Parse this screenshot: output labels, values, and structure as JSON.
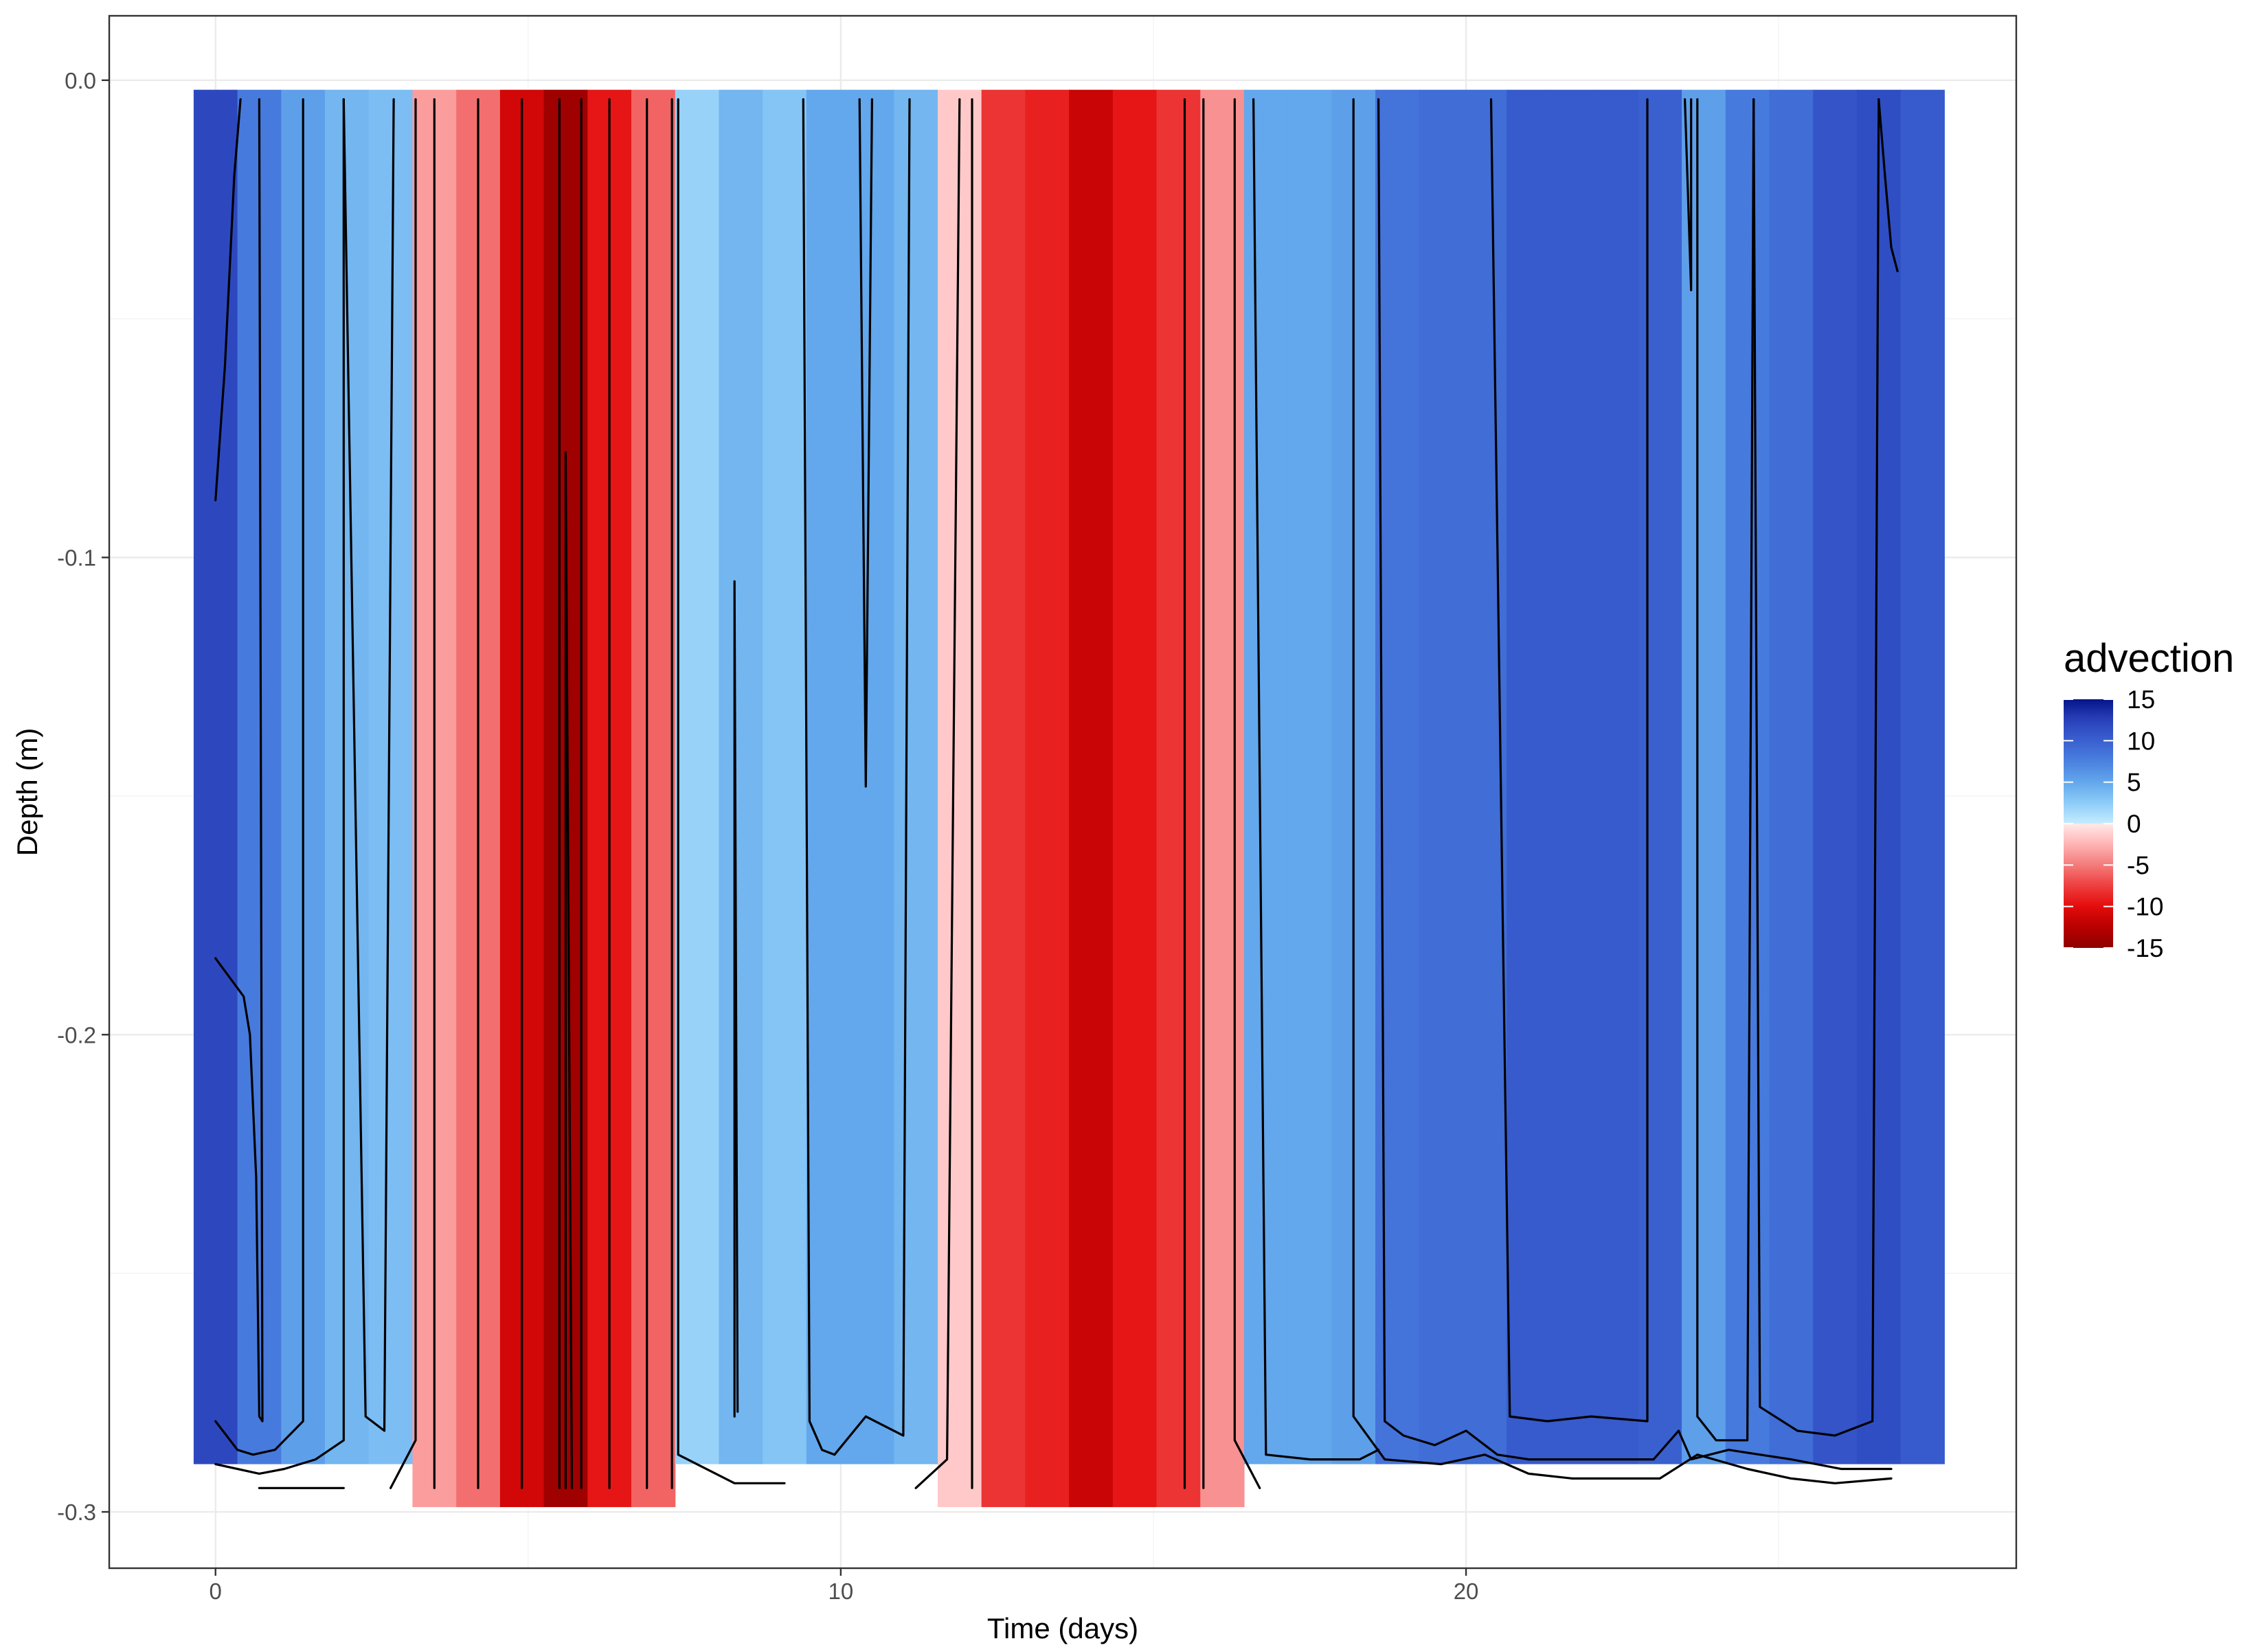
{
  "chart_data": {
    "type": "heatmap",
    "xlabel": "Time (days)",
    "ylabel": "Depth (m)",
    "xlim": [
      -1.7,
      28.8
    ],
    "ylim": [
      -0.3118,
      0.0135
    ],
    "x_ticks": [
      0,
      10,
      20
    ],
    "y_ticks": [
      0.0,
      -0.1,
      -0.2,
      -0.3
    ],
    "x_tick_labels": [
      "0",
      "10",
      "20"
    ],
    "y_tick_labels": [
      "0.0",
      "-0.1",
      "-0.2",
      "-0.3"
    ],
    "grid": true,
    "legend": {
      "title": "advection",
      "position": "right",
      "colorbar_labels": [
        "15",
        "10",
        "5",
        "0",
        "-5",
        "-10",
        "-15"
      ],
      "colorbar_values": [
        15,
        10,
        5,
        0,
        -5,
        -10,
        -15
      ],
      "colors_positive": [
        "#c6ebff",
        "#8cccf7",
        "#63a7ec",
        "#4a80e0",
        "#3a60d0",
        "#2a42bb",
        "#05148a"
      ],
      "colors_negative": [
        "#ffeaea",
        "#ffb3b3",
        "#f47b7b",
        "#ee3e3e",
        "#e40c0c",
        "#b80000",
        "#8e0000"
      ]
    },
    "depth_range": [
      -0.29,
      -0.002
    ],
    "depth_range_negative": [
      -0.299,
      -0.002
    ],
    "columns": [
      {
        "x": 0.0,
        "value": 12.0
      },
      {
        "x": 0.7,
        "value": 8.0
      },
      {
        "x": 1.4,
        "value": 5.5
      },
      {
        "x": 2.1,
        "value": 4.0
      },
      {
        "x": 2.8,
        "value": 3.5
      },
      {
        "x": 3.5,
        "value": -3.5
      },
      {
        "x": 4.2,
        "value": -5.5
      },
      {
        "x": 4.9,
        "value": -11.0
      },
      {
        "x": 5.6,
        "value": -14.0
      },
      {
        "x": 6.3,
        "value": -9.5
      },
      {
        "x": 7.0,
        "value": -6.0
      },
      {
        "x": 7.7,
        "value": 2.0
      },
      {
        "x": 8.4,
        "value": 4.0
      },
      {
        "x": 9.1,
        "value": 3.0
      },
      {
        "x": 9.8,
        "value": 5.0
      },
      {
        "x": 10.5,
        "value": 5.0
      },
      {
        "x": 11.2,
        "value": 4.0
      },
      {
        "x": 11.9,
        "value": -1.5
      },
      {
        "x": 12.6,
        "value": -8.0
      },
      {
        "x": 13.3,
        "value": -9.0
      },
      {
        "x": 14.0,
        "value": -11.5
      },
      {
        "x": 14.7,
        "value": -9.5
      },
      {
        "x": 15.4,
        "value": -8.0
      },
      {
        "x": 16.1,
        "value": -4.0
      },
      {
        "x": 16.8,
        "value": 5.0
      },
      {
        "x": 17.5,
        "value": 5.0
      },
      {
        "x": 18.2,
        "value": 5.5
      },
      {
        "x": 18.9,
        "value": 8.5
      },
      {
        "x": 19.6,
        "value": 9.0
      },
      {
        "x": 20.3,
        "value": 9.0
      },
      {
        "x": 21.0,
        "value": 10.5
      },
      {
        "x": 21.7,
        "value": 10.5
      },
      {
        "x": 22.4,
        "value": 10.5
      },
      {
        "x": 23.1,
        "value": 10.0
      },
      {
        "x": 23.8,
        "value": 5.5
      },
      {
        "x": 24.5,
        "value": 8.0
      },
      {
        "x": 25.2,
        "value": 9.0
      },
      {
        "x": 25.9,
        "value": 11.0
      },
      {
        "x": 26.6,
        "value": 11.5
      },
      {
        "x": 27.3,
        "value": 10.5
      }
    ],
    "contours": [
      [
        [
          0.0,
          -0.088
        ],
        [
          0.15,
          -0.06
        ],
        [
          0.3,
          -0.02
        ],
        [
          0.4,
          -0.004
        ]
      ],
      [
        [
          0.0,
          -0.184
        ],
        [
          0.45,
          -0.192
        ],
        [
          0.55,
          -0.2
        ],
        [
          0.65,
          -0.23
        ],
        [
          0.7,
          -0.28
        ],
        [
          0.75,
          -0.281
        ],
        [
          0.75,
          -0.28
        ],
        [
          0.7,
          -0.004
        ]
      ],
      [
        [
          0.0,
          -0.281
        ],
        [
          0.35,
          -0.287
        ],
        [
          0.6,
          -0.288
        ],
        [
          0.95,
          -0.287
        ],
        [
          1.4,
          -0.281
        ],
        [
          1.4,
          -0.004
        ]
      ],
      [
        [
          0.0,
          -0.29
        ],
        [
          0.7,
          -0.292
        ],
        [
          1.1,
          -0.291
        ],
        [
          1.6,
          -0.289
        ],
        [
          2.05,
          -0.285
        ],
        [
          2.05,
          -0.004
        ]
      ],
      [
        [
          0.7,
          -0.295
        ],
        [
          2.05,
          -0.295
        ]
      ],
      [
        [
          2.05,
          -0.004
        ],
        [
          2.4,
          -0.28
        ],
        [
          2.7,
          -0.283
        ],
        [
          2.85,
          -0.004
        ]
      ],
      [
        [
          2.8,
          -0.295
        ],
        [
          3.2,
          -0.285
        ],
        [
          3.2,
          -0.004
        ]
      ],
      [
        [
          3.5,
          -0.004
        ],
        [
          3.5,
          -0.295
        ]
      ],
      [
        [
          4.2,
          -0.004
        ],
        [
          4.2,
          -0.295
        ]
      ],
      [
        [
          4.9,
          -0.004
        ],
        [
          4.9,
          -0.295
        ]
      ],
      [
        [
          5.5,
          -0.295
        ],
        [
          5.5,
          -0.004
        ]
      ],
      [
        [
          5.6,
          -0.295
        ],
        [
          5.6,
          -0.078
        ],
        [
          5.7,
          -0.295
        ]
      ],
      [
        [
          5.85,
          -0.004
        ],
        [
          5.85,
          -0.295
        ]
      ],
      [
        [
          6.3,
          -0.004
        ],
        [
          6.3,
          -0.295
        ]
      ],
      [
        [
          6.9,
          -0.004
        ],
        [
          6.9,
          -0.295
        ]
      ],
      [
        [
          7.3,
          -0.295
        ],
        [
          7.3,
          -0.004
        ]
      ],
      [
        [
          7.4,
          -0.004
        ],
        [
          7.4,
          -0.288
        ],
        [
          8.3,
          -0.294
        ],
        [
          9.1,
          -0.294
        ]
      ],
      [
        [
          8.3,
          -0.28
        ],
        [
          8.3,
          -0.105
        ],
        [
          8.35,
          -0.279
        ]
      ],
      [
        [
          9.4,
          -0.004
        ],
        [
          9.5,
          -0.281
        ],
        [
          9.7,
          -0.287
        ],
        [
          9.9,
          -0.288
        ],
        [
          10.4,
          -0.28
        ],
        [
          11.0,
          -0.284
        ],
        [
          11.1,
          -0.004
        ]
      ],
      [
        [
          10.3,
          -0.004
        ],
        [
          10.4,
          -0.148
        ],
        [
          10.5,
          -0.004
        ]
      ],
      [
        [
          11.2,
          -0.295
        ],
        [
          11.7,
          -0.289
        ],
        [
          11.9,
          -0.004
        ]
      ],
      [
        [
          12.1,
          -0.004
        ],
        [
          12.1,
          -0.295
        ]
      ],
      [
        [
          15.5,
          -0.004
        ],
        [
          15.5,
          -0.295
        ]
      ],
      [
        [
          15.8,
          -0.004
        ],
        [
          15.8,
          -0.295
        ]
      ],
      [
        [
          16.3,
          -0.004
        ],
        [
          16.3,
          -0.285
        ],
        [
          16.7,
          -0.295
        ]
      ],
      [
        [
          16.6,
          -0.004
        ],
        [
          16.8,
          -0.288
        ],
        [
          17.5,
          -0.289
        ],
        [
          18.3,
          -0.289
        ],
        [
          18.6,
          -0.287
        ]
      ],
      [
        [
          18.2,
          -0.004
        ],
        [
          18.2,
          -0.28
        ],
        [
          18.7,
          -0.289
        ],
        [
          19.6,
          -0.29
        ],
        [
          20.3,
          -0.288
        ],
        [
          21.0,
          -0.292
        ],
        [
          21.7,
          -0.293
        ],
        [
          22.4,
          -0.293
        ],
        [
          23.1,
          -0.293
        ],
        [
          23.7,
          -0.288
        ],
        [
          24.5,
          -0.291
        ],
        [
          25.2,
          -0.293
        ],
        [
          25.9,
          -0.294
        ],
        [
          26.8,
          -0.293
        ]
      ],
      [
        [
          18.6,
          -0.004
        ],
        [
          18.7,
          -0.281
        ],
        [
          19.0,
          -0.284
        ],
        [
          19.5,
          -0.286
        ],
        [
          20.0,
          -0.283
        ],
        [
          20.5,
          -0.288
        ],
        [
          21.0,
          -0.289
        ],
        [
          22.0,
          -0.289
        ],
        [
          23.0,
          -0.289
        ],
        [
          23.4,
          -0.283
        ],
        [
          23.6,
          -0.289
        ],
        [
          24.2,
          -0.287
        ],
        [
          25.2,
          -0.289
        ],
        [
          26.0,
          -0.291
        ],
        [
          26.8,
          -0.291
        ]
      ],
      [
        [
          20.4,
          -0.004
        ],
        [
          20.7,
          -0.28
        ],
        [
          21.3,
          -0.281
        ],
        [
          22.0,
          -0.28
        ],
        [
          22.9,
          -0.281
        ],
        [
          22.9,
          -0.004
        ]
      ],
      [
        [
          23.5,
          -0.004
        ],
        [
          23.6,
          -0.044
        ],
        [
          23.6,
          -0.004
        ]
      ],
      [
        [
          23.7,
          -0.004
        ],
        [
          23.7,
          -0.28
        ],
        [
          24.0,
          -0.285
        ],
        [
          24.5,
          -0.285
        ],
        [
          24.6,
          -0.004
        ]
      ],
      [
        [
          24.6,
          -0.004
        ],
        [
          24.7,
          -0.278
        ],
        [
          25.3,
          -0.283
        ],
        [
          25.9,
          -0.284
        ],
        [
          26.5,
          -0.281
        ],
        [
          26.6,
          -0.004
        ]
      ],
      [
        [
          26.6,
          -0.004
        ],
        [
          26.7,
          -0.02
        ],
        [
          26.8,
          -0.035
        ],
        [
          26.9,
          -0.04
        ]
      ]
    ]
  }
}
